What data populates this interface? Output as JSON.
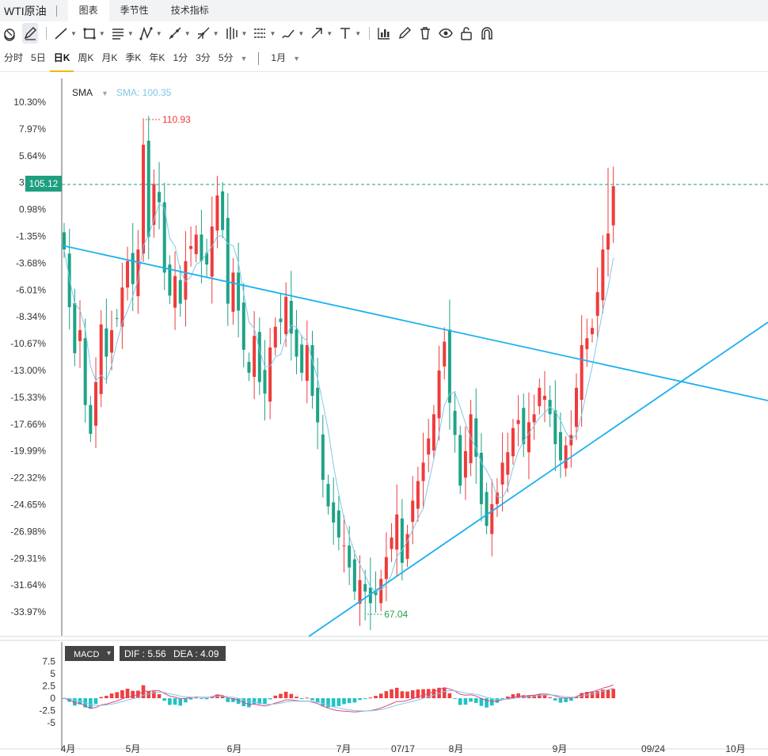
{
  "header": {
    "title": "WTI原油",
    "tabs": [
      {
        "label": "图表",
        "active": true
      },
      {
        "label": "季节性",
        "active": false
      },
      {
        "label": "技术指标",
        "active": false
      }
    ]
  },
  "toolbar": {
    "tools": [
      {
        "name": "magnet-icon",
        "caret": false
      },
      {
        "name": "pencil-icon",
        "caret": false,
        "selected": true
      },
      {
        "name": "trend-line-icon",
        "caret": true
      },
      {
        "name": "rectangle-icon",
        "caret": true
      },
      {
        "name": "parallel-lines-icon",
        "caret": true
      },
      {
        "name": "pattern-icon",
        "caret": true
      },
      {
        "name": "ray-icon",
        "caret": true
      },
      {
        "name": "fibonacci-icon",
        "caret": true
      },
      {
        "name": "gann-icon",
        "caret": true
      },
      {
        "name": "levels-icon",
        "caret": true
      },
      {
        "name": "brush-icon",
        "caret": true
      },
      {
        "name": "arrow-icon",
        "caret": true
      },
      {
        "name": "text-icon",
        "caret": true
      },
      {
        "name": "measure-icon",
        "caret": false
      },
      {
        "name": "edit-icon",
        "caret": false
      },
      {
        "name": "trash-icon",
        "caret": false
      },
      {
        "name": "eye-icon",
        "caret": false
      },
      {
        "name": "lock-icon",
        "caret": false
      },
      {
        "name": "magnet-snap-icon",
        "caret": false
      }
    ]
  },
  "periods": {
    "items": [
      {
        "label": "分时",
        "active": false
      },
      {
        "label": "5日",
        "active": false
      },
      {
        "label": "日K",
        "active": true
      },
      {
        "label": "周K",
        "active": false
      },
      {
        "label": "月K",
        "active": false
      },
      {
        "label": "季K",
        "active": false
      },
      {
        "label": "年K",
        "active": false
      },
      {
        "label": "1分",
        "active": false
      },
      {
        "label": "3分",
        "active": false
      },
      {
        "label": "5分",
        "active": false
      }
    ],
    "range": "1月"
  },
  "chart_data": {
    "type": "candlestick",
    "y_axis_ticks": [
      "10.30%",
      "7.97%",
      "5.64%",
      "3.31%",
      "0.98%",
      "-1.35%",
      "-3.68%",
      "-6.01%",
      "-8.34%",
      "-10.67%",
      "-13.00%",
      "-15.33%",
      "-17.66%",
      "-19.99%",
      "-22.32%",
      "-24.65%",
      "-26.98%",
      "-29.31%",
      "-31.64%",
      "-33.97%"
    ],
    "x_axis_ticks": [
      "4月",
      "5月",
      "6月",
      "7月",
      "07/17",
      "8月",
      "9月",
      "09/24",
      "10月"
    ],
    "current_price": "105.12",
    "max_label": "110.93",
    "min_label": "67.04",
    "indicator": {
      "name": "SMA",
      "value_label": "SMA: 100.35"
    },
    "macd": {
      "name": "MACD",
      "dif_label": "DIF : 5.56",
      "dea_label": "DEA : 4.09",
      "y_ticks": [
        "7.5",
        "5",
        "2.5",
        "0",
        "-2.5",
        "-5"
      ]
    },
    "colors": {
      "up": "#ef3b3b",
      "down": "#1ea387",
      "trendline": "#1ab0f0",
      "sma": "#7ec8e8",
      "price_tag": "#1d9f80"
    }
  }
}
